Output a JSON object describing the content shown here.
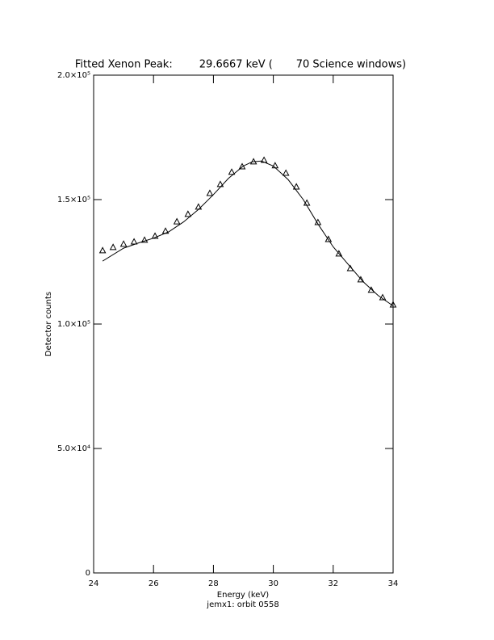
{
  "chart_data": {
    "type": "scatter",
    "title": "Fitted Xenon Peak:        29.6667 keV (       70 Science windows)",
    "x_label": "Energy (keV)",
    "subtitle": "jemx1: orbit 0558",
    "y_label": "Detector counts",
    "xlim": [
      24,
      34
    ],
    "xticks": [
      24,
      26,
      28,
      30,
      32,
      34
    ],
    "ylim": [
      0,
      200000
    ],
    "yticks": [
      0,
      {
        "value": 50000,
        "label": "5.0×10⁴"
      },
      {
        "value": 100000,
        "label": "1.0×10⁵"
      },
      {
        "value": 150000,
        "label": "1.5×10⁵"
      },
      {
        "value": 200000,
        "label": "2.0×10⁵"
      }
    ],
    "series": [
      {
        "color": "#000000",
        "marker": "triangle",
        "x": [
          24.3,
          24.65,
          25.0,
          25.35,
          25.7,
          26.05,
          26.4,
          26.78,
          27.15,
          27.5,
          27.88,
          28.23,
          28.61,
          28.96,
          29.34,
          29.69,
          30.06,
          30.42,
          30.77,
          31.12,
          31.49,
          31.84,
          32.19,
          32.57,
          32.92,
          33.27,
          33.65,
          34.0
        ],
        "values": [
          129600,
          130900,
          132200,
          133100,
          133800,
          135400,
          137400,
          141200,
          144200,
          147100,
          152600,
          156200,
          161100,
          163300,
          165300,
          165900,
          163700,
          160700,
          155200,
          148700,
          140900,
          134100,
          128300,
          122400,
          117900,
          113700,
          110700,
          107800
        ]
      },
      {
        "color": "#000000",
        "marker": "line",
        "x": [
          24.3,
          25,
          25.5,
          26,
          26.5,
          27,
          27.5,
          28,
          28.5,
          29,
          29.3,
          29.6,
          30,
          30.5,
          31,
          31.5,
          32,
          32.5,
          33,
          33.5,
          34
        ],
        "values": [
          125300,
          130500,
          132600,
          134500,
          137000,
          141000,
          146000,
          152000,
          158500,
          163500,
          165200,
          165500,
          163500,
          158000,
          150000,
          140000,
          131000,
          124000,
          117000,
          111500,
          107300
        ]
      }
    ]
  }
}
